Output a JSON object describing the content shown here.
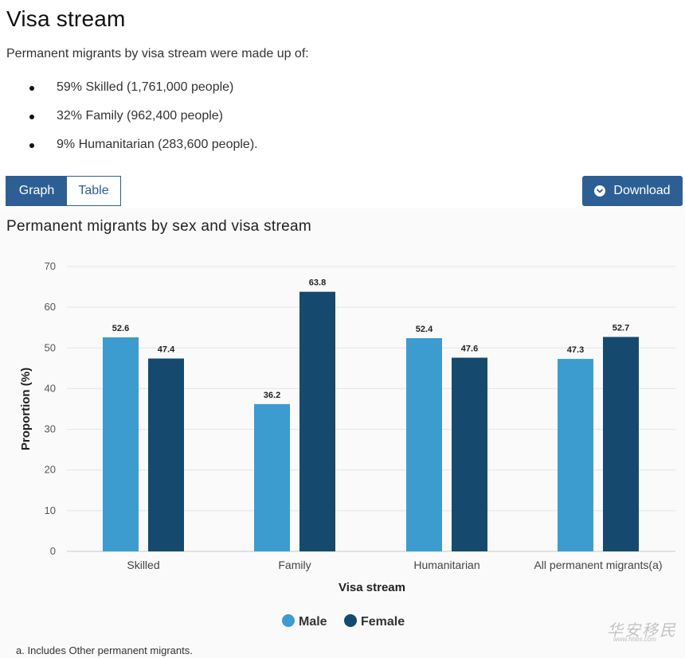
{
  "heading": "Visa stream",
  "intro": "Permanent migrants by visa stream were made up of:",
  "bullets": [
    "59% Skilled (1,761,000 people)",
    "32% Family (962,400 people)",
    "9% Humanitarian (283,600 people)."
  ],
  "view_toggle": {
    "graph_label": "Graph",
    "table_label": "Table",
    "active": "graph"
  },
  "download": {
    "label": "Download",
    "icon": "chevron-down-icon"
  },
  "colors": {
    "accent": "#2d5f94",
    "male": "#3d9ccf",
    "female": "#154a6e"
  },
  "chart_data": {
    "type": "bar",
    "title": "Permanent migrants by sex and visa stream",
    "xlabel": "Visa stream",
    "ylabel": "Proportion (%)",
    "ylim": [
      0,
      70
    ],
    "yticks": [
      0,
      10,
      20,
      30,
      40,
      50,
      60,
      70
    ],
    "grid": true,
    "legend_position": "bottom-center",
    "categories": [
      "Skilled",
      "Family",
      "Humanitarian",
      "All permanent migrants(a)"
    ],
    "series": [
      {
        "name": "Male",
        "color": "#3d9ccf",
        "values": [
          52.6,
          36.2,
          52.4,
          47.3
        ]
      },
      {
        "name": "Female",
        "color": "#154a6e",
        "values": [
          47.4,
          63.8,
          47.6,
          52.7
        ]
      }
    ]
  },
  "footnote": "a. Includes Other permanent migrants.",
  "watermark": {
    "text": "华安移民",
    "sub": "www.hhbs.com"
  }
}
